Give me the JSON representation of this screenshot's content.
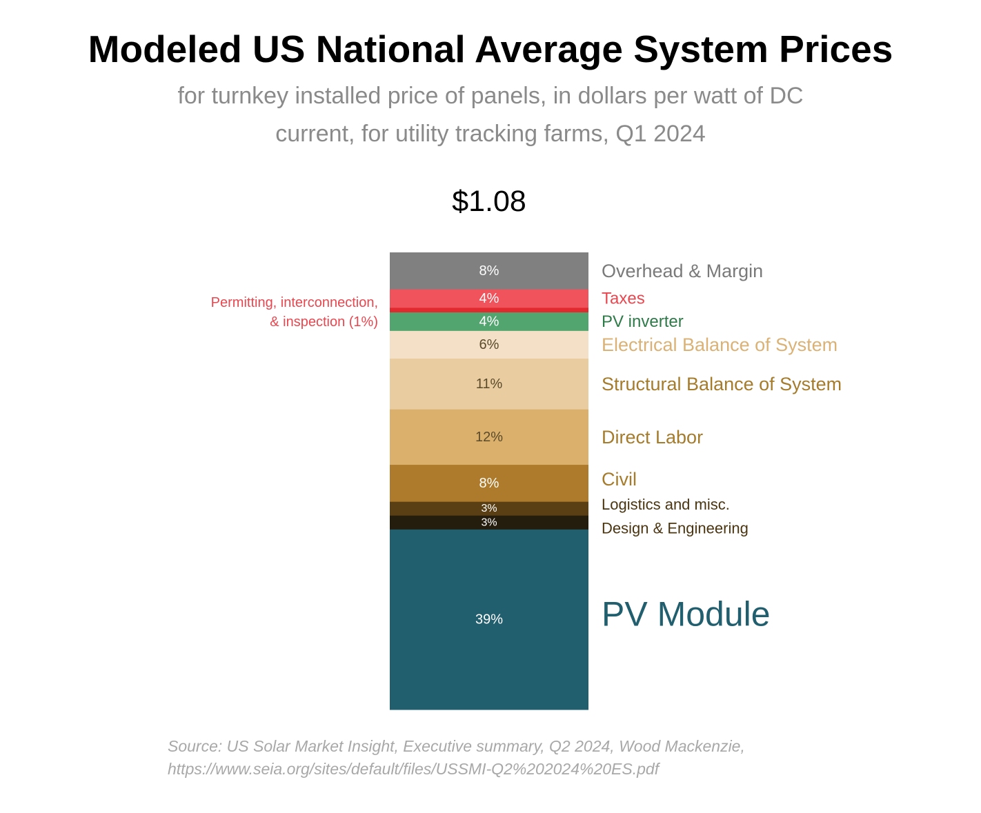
{
  "title": "Modeled US National Average System Prices",
  "subtitle": "for turnkey installed price of panels, in dollars per watt of DC current, for utility tracking farms, Q1 2024",
  "total_label": "$1.08",
  "source_line1": "Source: US Solar Market Insight, Executive summary, Q2 2024, Wood Mackenzie,",
  "source_line2": "https://www.seia.org/sites/default/files/USSMI-Q2%202024%20ES.pdf",
  "chart_data": {
    "type": "bar",
    "stacked": true,
    "title": "Modeled US National Average System Prices",
    "total": 1.08,
    "unit": "percent of total system price",
    "segments_top_to_bottom": [
      {
        "name": "Overhead & Margin",
        "value": 8,
        "label": "8%",
        "color": "#808080",
        "text_color": "#7a7a7a",
        "value_color": "#ffffff"
      },
      {
        "name": "Taxes",
        "value": 4,
        "label": "4%",
        "color": "#f0535c",
        "text_color": "#e8474f",
        "value_color": "#ffffff"
      },
      {
        "name": "Permitting, interconnection, & inspection (1%)",
        "value": 1,
        "label": "",
        "color": "#e02a2f",
        "text_color": "#e8474f",
        "value_color": "#ffffff"
      },
      {
        "name": "PV inverter",
        "value": 4,
        "label": "4%",
        "color": "#52a56f",
        "text_color": "#2f7a49",
        "value_color": "#ffffff"
      },
      {
        "name": "Electrical Balance of System",
        "value": 6,
        "label": "6%",
        "color": "#f3e0c6",
        "text_color": "#dbb275",
        "value_color": "#5a4a2a"
      },
      {
        "name": "Structural Balance of System",
        "value": 11,
        "label": "11%",
        "color": "#e9cda1",
        "text_color": "#a57b2c",
        "value_color": "#5a4a2a"
      },
      {
        "name": "Direct Labor",
        "value": 12,
        "label": "12%",
        "color": "#dbb06c",
        "text_color": "#a57b2c",
        "value_color": "#5a4a2a"
      },
      {
        "name": "Civil",
        "value": 8,
        "label": "8%",
        "color": "#ad7b2b",
        "text_color": "#a57b2c",
        "value_color": "#ffffff"
      },
      {
        "name": "Logistics and misc.",
        "value": 3,
        "label": "3%",
        "color": "#5a3f14",
        "text_color": "#4a3510",
        "value_color": "#ffffff"
      },
      {
        "name": "Design & Engineering",
        "value": 3,
        "label": "3%",
        "color": "#241c0d",
        "text_color": "#4a3510",
        "value_color": "#ffffff"
      },
      {
        "name": "PV Module",
        "value": 39,
        "label": "39%",
        "color": "#215e6e",
        "text_color": "#215e6e",
        "value_color": "#ffffff"
      }
    ]
  }
}
